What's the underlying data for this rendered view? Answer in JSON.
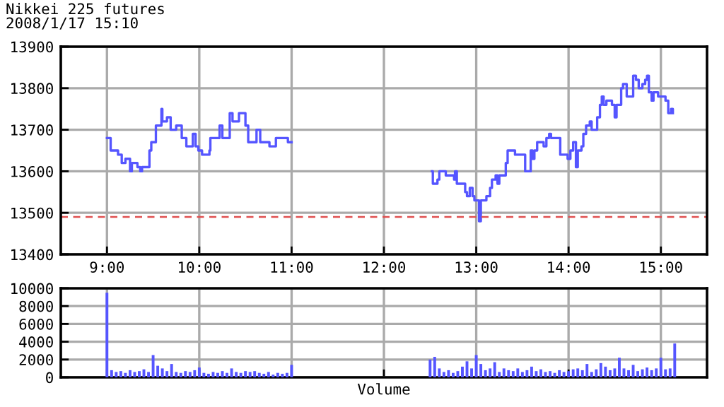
{
  "chart_data": [
    {
      "type": "step",
      "title": "Nikkei 225 futures",
      "subtitle": "2008/1/17 15:10",
      "xlim": [
        8.5,
        15.5
      ],
      "xticks": [
        {
          "value": 9,
          "label": "9:00"
        },
        {
          "value": 10,
          "label": "10:00"
        },
        {
          "value": 11,
          "label": "11:00"
        },
        {
          "value": 12,
          "label": "12:00"
        },
        {
          "value": 13,
          "label": "13:00"
        },
        {
          "value": 14,
          "label": "14:00"
        },
        {
          "value": 15,
          "label": "15:00"
        }
      ],
      "ylim": [
        13400,
        13900
      ],
      "yticks": [
        13400,
        13500,
        13600,
        13700,
        13800,
        13900
      ],
      "grid": true,
      "ref_lines": [
        {
          "axis": "y",
          "value": 13490,
          "color": "#e05050",
          "line_style": "dashed"
        }
      ],
      "series": [
        {
          "color": "#5555ff",
          "x": [
            9.0,
            9.04,
            9.12,
            9.16,
            9.2,
            9.25,
            9.27,
            9.33,
            9.36,
            9.38,
            9.44,
            9.46,
            9.48,
            9.53,
            9.59,
            9.6,
            9.65,
            9.69,
            9.75,
            9.81,
            9.86,
            9.93,
            9.96,
            9.99,
            10.03,
            10.11,
            10.12,
            10.22,
            10.25,
            10.33,
            10.36,
            10.43,
            10.5,
            10.53,
            10.62,
            10.66,
            10.76,
            10.83,
            10.96,
            11.0
          ],
          "values": [
            13680,
            13650,
            13640,
            13620,
            13630,
            13600,
            13620,
            13610,
            13600,
            13610,
            13610,
            13650,
            13670,
            13710,
            13750,
            13720,
            13730,
            13700,
            13710,
            13680,
            13660,
            13690,
            13660,
            13650,
            13640,
            13650,
            13680,
            13710,
            13680,
            13740,
            13720,
            13740,
            13710,
            13670,
            13700,
            13670,
            13660,
            13680,
            13670,
            13670
          ]
        },
        {
          "color": "#5555ff",
          "x": [
            12.52,
            12.53,
            12.58,
            12.6,
            12.67,
            12.76,
            12.77,
            12.79,
            12.88,
            12.9,
            12.93,
            12.96,
            12.98,
            13.03,
            13.05,
            13.11,
            13.15,
            13.17,
            13.21,
            13.23,
            13.25,
            13.32,
            13.34,
            13.42,
            13.5,
            13.53,
            13.59,
            13.61,
            13.63,
            13.66,
            13.73,
            13.76,
            13.79,
            13.81,
            13.91,
            13.99,
            14.02,
            14.05,
            14.08,
            14.1,
            14.14,
            14.16,
            14.19,
            14.23,
            14.25,
            14.31,
            14.34,
            14.36,
            14.38,
            14.41,
            14.47,
            14.5,
            14.52,
            14.57,
            14.59,
            14.63,
            14.7,
            14.73,
            14.76,
            14.8,
            14.83,
            14.85,
            14.87,
            14.9,
            14.92,
            14.97,
            15.05,
            15.08,
            15.11,
            15.13
          ],
          "values": [
            13600,
            13570,
            13580,
            13600,
            13590,
            13580,
            13600,
            13570,
            13550,
            13540,
            13560,
            13540,
            13530,
            13480,
            13530,
            13540,
            13560,
            13580,
            13590,
            13570,
            13590,
            13620,
            13650,
            13640,
            13640,
            13600,
            13650,
            13630,
            13650,
            13670,
            13660,
            13680,
            13690,
            13680,
            13640,
            13630,
            13650,
            13670,
            13610,
            13650,
            13660,
            13690,
            13710,
            13720,
            13700,
            13730,
            13760,
            13780,
            13760,
            13770,
            13760,
            13730,
            13760,
            13800,
            13810,
            13780,
            13830,
            13820,
            13800,
            13810,
            13820,
            13830,
            13790,
            13770,
            13790,
            13780,
            13770,
            13740,
            13750,
            13740
          ]
        }
      ]
    },
    {
      "type": "bar",
      "xlabel": "Volume",
      "xlim": [
        8.5,
        15.5
      ],
      "xticks": [
        9,
        10,
        11,
        12,
        13,
        14,
        15
      ],
      "ylim": [
        0,
        10000
      ],
      "yticks": [
        0,
        2000,
        4000,
        6000,
        8000,
        10000
      ],
      "grid": true,
      "tick_labels": "y",
      "series": [
        {
          "color": "#5555ff",
          "x": [
            9.0,
            9.05,
            9.1,
            9.15,
            9.2,
            9.25,
            9.3,
            9.35,
            9.4,
            9.45,
            9.5,
            9.55,
            9.6,
            9.65,
            9.7,
            9.75,
            9.8,
            9.85,
            9.9,
            9.95,
            10.0,
            10.05,
            10.1,
            10.15,
            10.2,
            10.25,
            10.3,
            10.35,
            10.4,
            10.45,
            10.5,
            10.55,
            10.6,
            10.65,
            10.7,
            10.75,
            10.8,
            10.85,
            10.9,
            10.95,
            11.0,
            12.5,
            12.55,
            12.6,
            12.65,
            12.7,
            12.75,
            12.8,
            12.85,
            12.9,
            12.95,
            13.0,
            13.05,
            13.1,
            13.15,
            13.2,
            13.25,
            13.3,
            13.35,
            13.4,
            13.45,
            13.5,
            13.55,
            13.6,
            13.65,
            13.7,
            13.75,
            13.8,
            13.85,
            13.9,
            13.95,
            14.0,
            14.05,
            14.1,
            14.15,
            14.2,
            14.25,
            14.3,
            14.35,
            14.4,
            14.45,
            14.5,
            14.55,
            14.6,
            14.65,
            14.7,
            14.75,
            14.8,
            14.85,
            14.9,
            14.95,
            15.0,
            15.05,
            15.1,
            15.15
          ],
          "values": [
            9500,
            800,
            600,
            700,
            500,
            800,
            600,
            700,
            900,
            600,
            2500,
            1300,
            1000,
            700,
            1500,
            600,
            500,
            700,
            600,
            800,
            1100,
            500,
            400,
            600,
            500,
            700,
            500,
            1000,
            600,
            500,
            700,
            600,
            700,
            500,
            400,
            600,
            300,
            500,
            400,
            500,
            1400,
            2000,
            2300,
            1000,
            600,
            800,
            500,
            700,
            1200,
            1800,
            1000,
            2500,
            1500,
            800,
            1000,
            1700,
            600,
            1000,
            800,
            700,
            1000,
            600,
            800,
            1200,
            700,
            900,
            600,
            700,
            500,
            800,
            600,
            700,
            900,
            1000,
            800,
            1500,
            600,
            900,
            1600,
            1200,
            800,
            1000,
            2200,
            1000,
            800,
            1400,
            700,
            900,
            1100,
            800,
            1000,
            2200,
            900,
            1000,
            3800
          ]
        }
      ]
    }
  ]
}
